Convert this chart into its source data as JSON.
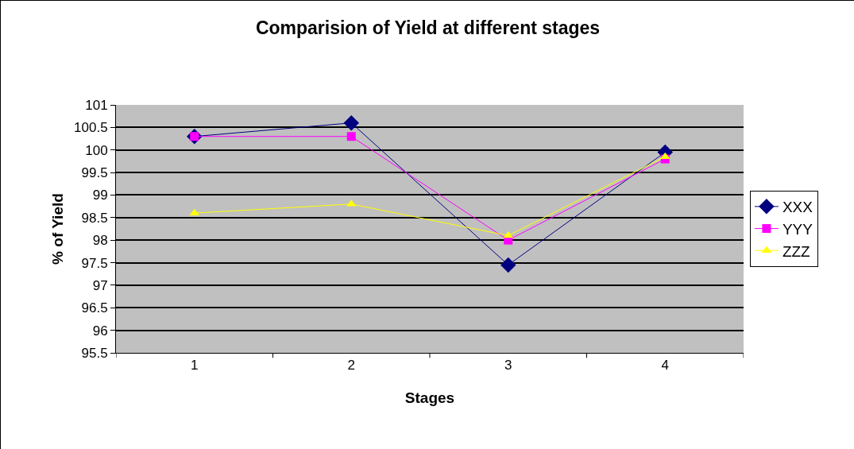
{
  "chart_data": {
    "type": "line",
    "title": "Comparision of Yield at different stages",
    "xlabel": "Stages",
    "ylabel": "% of Yield",
    "categories": [
      "1",
      "2",
      "3",
      "4"
    ],
    "series": [
      {
        "name": "XXX",
        "color": "#000080",
        "marker": "diamond",
        "values": [
          100.3,
          100.6,
          97.45,
          99.95
        ]
      },
      {
        "name": "YYY",
        "color": "#ff00ff",
        "marker": "square",
        "values": [
          100.3,
          100.3,
          98.0,
          99.8
        ]
      },
      {
        "name": "ZZZ",
        "color": "#ffff00",
        "marker": "triangle",
        "values": [
          98.6,
          98.8,
          98.1,
          99.85
        ]
      }
    ],
    "ylim": [
      95.5,
      101
    ],
    "yticks": [
      95.5,
      96,
      96.5,
      97,
      97.5,
      98,
      98.5,
      99,
      99.5,
      100,
      100.5,
      101
    ],
    "grid": "y",
    "legend": "right",
    "line_style": "solid"
  }
}
